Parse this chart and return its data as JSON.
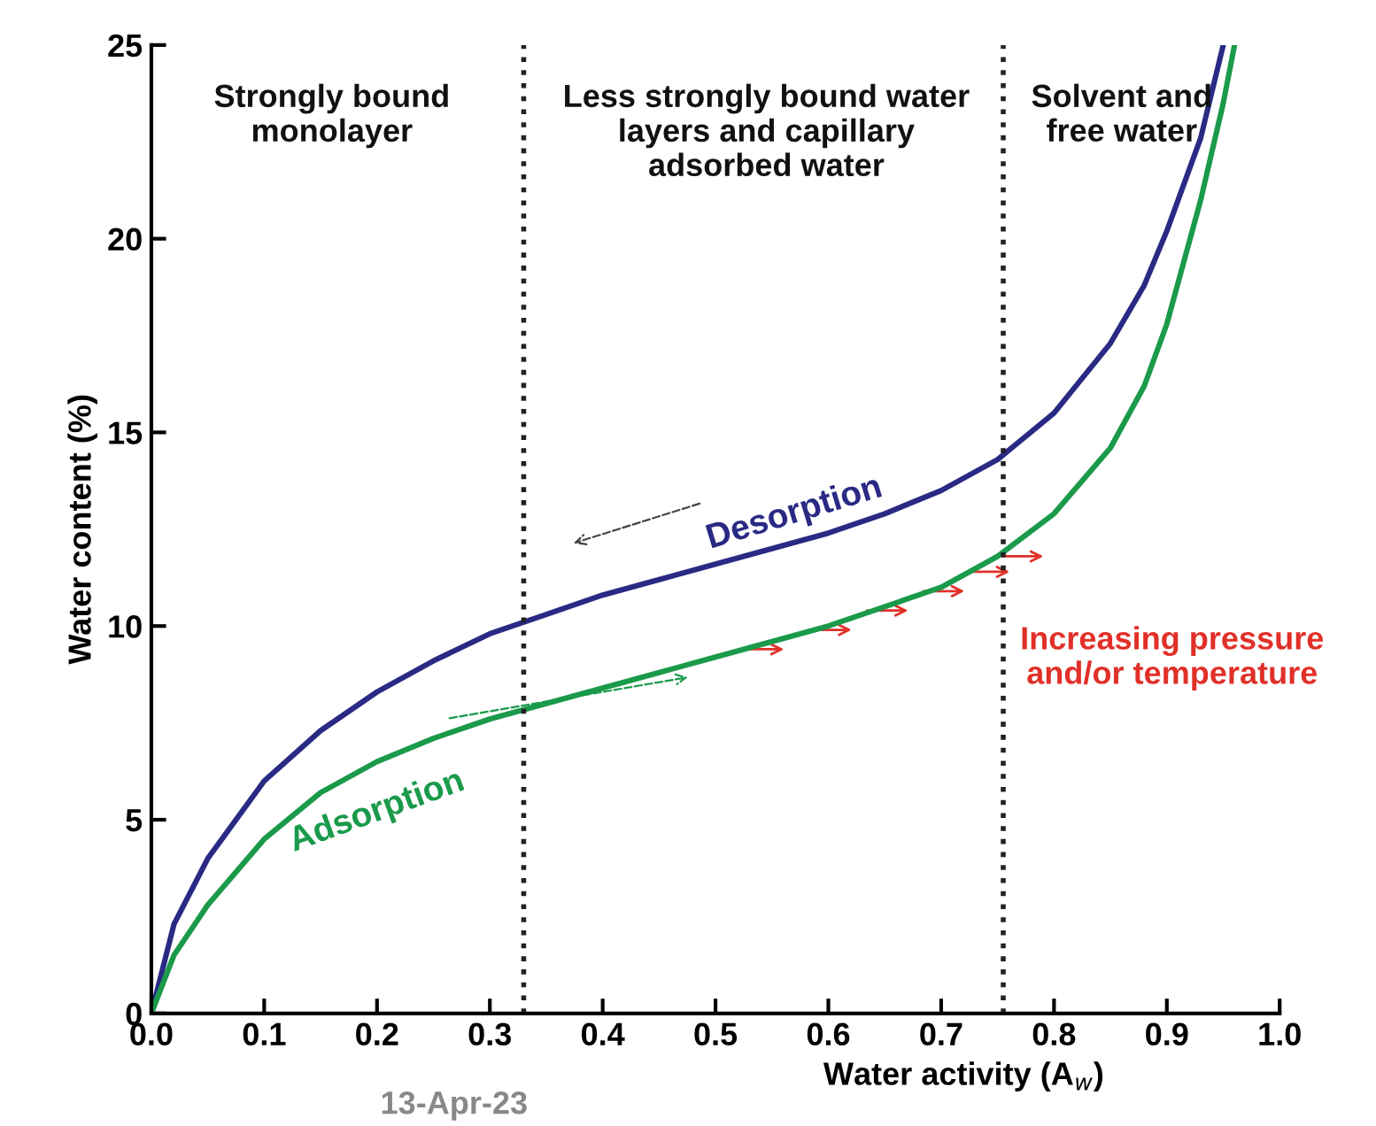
{
  "chart_data": {
    "type": "line",
    "xlabel": "Water activity (A$_{w}$)",
    "ylabel": "Water content (%)",
    "xlim": [
      0,
      1.0
    ],
    "ylim": [
      0,
      25
    ],
    "xticks": [
      {
        "value": 0,
        "label": "0.0"
      },
      0.1,
      0.2,
      0.3,
      0.4,
      0.5,
      0.6,
      0.7,
      0.8,
      0.9,
      {
        "value": 1.0,
        "label": "1.0"
      }
    ],
    "yticks": [
      0,
      5,
      10,
      15,
      20,
      25
    ],
    "series": [
      {
        "name": "Desorption",
        "color": "#2a2a85",
        "x": [
          0,
          0.02,
          0.05,
          0.1,
          0.15,
          0.2,
          0.25,
          0.3,
          0.35,
          0.4,
          0.45,
          0.5,
          0.55,
          0.6,
          0.65,
          0.7,
          0.75,
          0.8,
          0.85,
          0.88,
          0.9,
          0.93,
          0.95
        ],
        "values": [
          0,
          2.3,
          4.0,
          6.0,
          7.3,
          8.3,
          9.1,
          9.8,
          10.3,
          10.8,
          11.2,
          11.6,
          12.0,
          12.4,
          12.9,
          13.5,
          14.3,
          15.5,
          17.3,
          18.8,
          20.2,
          22.6,
          25
        ]
      },
      {
        "name": "Adsorption",
        "color": "#1a9a4a",
        "x": [
          0,
          0.02,
          0.05,
          0.1,
          0.15,
          0.2,
          0.25,
          0.3,
          0.35,
          0.4,
          0.45,
          0.5,
          0.55,
          0.6,
          0.65,
          0.7,
          0.75,
          0.8,
          0.85,
          0.88,
          0.9,
          0.93,
          0.95,
          0.96
        ],
        "values": [
          0,
          1.5,
          2.8,
          4.5,
          5.7,
          6.5,
          7.1,
          7.6,
          8.0,
          8.4,
          8.8,
          9.2,
          9.6,
          10.0,
          10.5,
          11.0,
          11.8,
          12.9,
          14.6,
          16.2,
          17.8,
          21.0,
          23.5,
          25
        ]
      }
    ],
    "ref_lines": [
      {
        "axis": "x",
        "value": 0.33,
        "color": "#222222",
        "line_style": "dotted"
      },
      {
        "axis": "x",
        "value": 0.755,
        "color": "#222222",
        "line_style": "dotted"
      }
    ],
    "annotations": [
      "Strongly bound\nmonolayer",
      "Less strongly bound water\nlayers and capillary\nadsorbed water",
      "Solvent and\nfree water",
      "Increasing pressure\nand/or temperature",
      "13-Apr-23"
    ],
    "legend": false,
    "grid": false,
    "marker": "none",
    "line_style": "solid"
  }
}
